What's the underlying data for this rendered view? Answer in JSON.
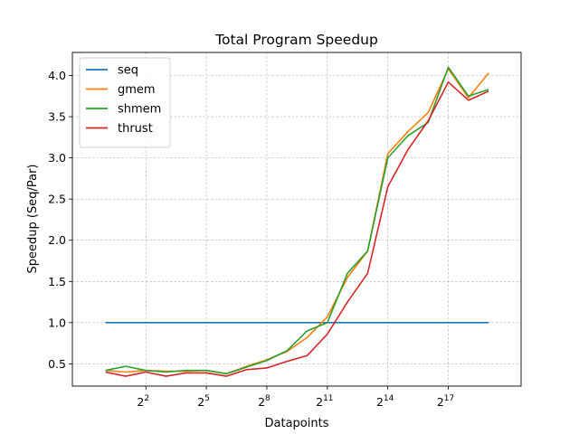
{
  "chart_data": {
    "type": "line",
    "title": "Total Program Speedup",
    "xlabel": "Datapoints",
    "ylabel": "Speedup (Seq/Par)",
    "x_scale": "log2",
    "x": [
      1,
      2,
      4,
      8,
      16,
      32,
      64,
      128,
      256,
      512,
      1024,
      2048,
      4096,
      8192,
      16384,
      32768,
      65536,
      131072,
      262144,
      524288
    ],
    "x_ticks": [
      {
        "value": 4,
        "base": "2",
        "exp": "2"
      },
      {
        "value": 32,
        "base": "2",
        "exp": "5"
      },
      {
        "value": 256,
        "base": "2",
        "exp": "8"
      },
      {
        "value": 2048,
        "base": "2",
        "exp": "11"
      },
      {
        "value": 16384,
        "base": "2",
        "exp": "14"
      },
      {
        "value": 131072,
        "base": "2",
        "exp": "17"
      }
    ],
    "xlim": [
      0.32,
      1600000
    ],
    "ylim": [
      0.23,
      4.28
    ],
    "y_ticks": [
      "0.5",
      "1.0",
      "1.5",
      "2.0",
      "2.5",
      "3.0",
      "3.5",
      "4.0"
    ],
    "grid": true,
    "legend_position": "top-left",
    "series": [
      {
        "name": "seq",
        "color": "#1f77b4",
        "values": [
          1.0,
          1.0,
          1.0,
          1.0,
          1.0,
          1.0,
          1.0,
          1.0,
          1.0,
          1.0,
          1.0,
          1.0,
          1.0,
          1.0,
          1.0,
          1.0,
          1.0,
          1.0,
          1.0,
          1.0
        ]
      },
      {
        "name": "gmem",
        "color": "#ff7f0e",
        "values": [
          0.42,
          0.4,
          0.42,
          0.41,
          0.41,
          0.42,
          0.38,
          0.47,
          0.55,
          0.65,
          0.82,
          1.07,
          1.55,
          1.87,
          3.05,
          3.32,
          3.55,
          4.08,
          3.73,
          4.03
        ]
      },
      {
        "name": "shmem",
        "color": "#2ca02c",
        "values": [
          0.42,
          0.47,
          0.42,
          0.4,
          0.42,
          0.42,
          0.38,
          0.46,
          0.54,
          0.66,
          0.9,
          1.0,
          1.6,
          1.87,
          3.0,
          3.27,
          3.43,
          4.1,
          3.75,
          3.83
        ]
      },
      {
        "name": "thrust",
        "color": "#d62728",
        "values": [
          0.4,
          0.35,
          0.4,
          0.35,
          0.39,
          0.39,
          0.35,
          0.43,
          0.45,
          0.53,
          0.6,
          0.86,
          1.25,
          1.6,
          2.65,
          3.1,
          3.45,
          3.92,
          3.7,
          3.81
        ]
      }
    ]
  }
}
